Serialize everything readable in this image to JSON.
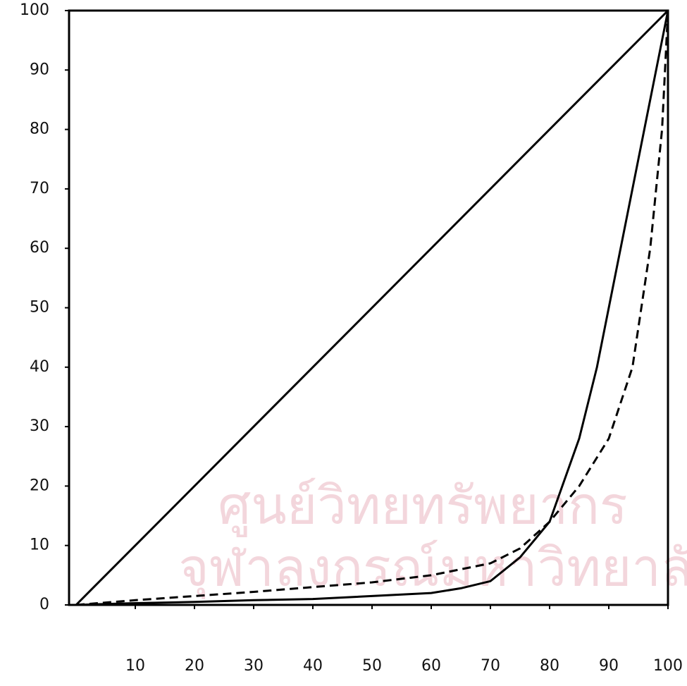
{
  "chart_data": {
    "type": "line",
    "watermark": [
      "ศูนย์วิทยทรัพยากร",
      "จุฬาลงกรณ์มหาวิทยาลัย"
    ],
    "xlim": [
      0,
      100
    ],
    "ylim": [
      0,
      100
    ],
    "xticks": [
      10,
      20,
      30,
      40,
      50,
      60,
      70,
      80,
      90,
      100
    ],
    "yticks": [
      0,
      10,
      20,
      30,
      40,
      50,
      60,
      70,
      80,
      90,
      100
    ],
    "series": [
      {
        "color": "#000000",
        "style": "solid",
        "x": [
          0,
          100
        ],
        "values": [
          0,
          100
        ]
      },
      {
        "color": "#000000",
        "style": "solid",
        "x": [
          0,
          10,
          20,
          30,
          40,
          50,
          60,
          65,
          70,
          75,
          80,
          85,
          88,
          92,
          96,
          100
        ],
        "values": [
          0,
          0.3,
          0.5,
          0.8,
          1,
          1.5,
          2,
          2.8,
          4,
          8,
          14,
          28,
          40,
          60,
          80,
          100
        ]
      },
      {
        "color": "#000000",
        "style": "dashed",
        "x": [
          0,
          10,
          20,
          30,
          40,
          50,
          60,
          70,
          75,
          80,
          85,
          90,
          94,
          97,
          99,
          100
        ],
        "values": [
          0,
          0.8,
          1.5,
          2.2,
          3,
          3.8,
          5,
          7,
          9.5,
          14,
          20,
          28,
          40,
          60,
          80,
          100
        ]
      }
    ]
  }
}
